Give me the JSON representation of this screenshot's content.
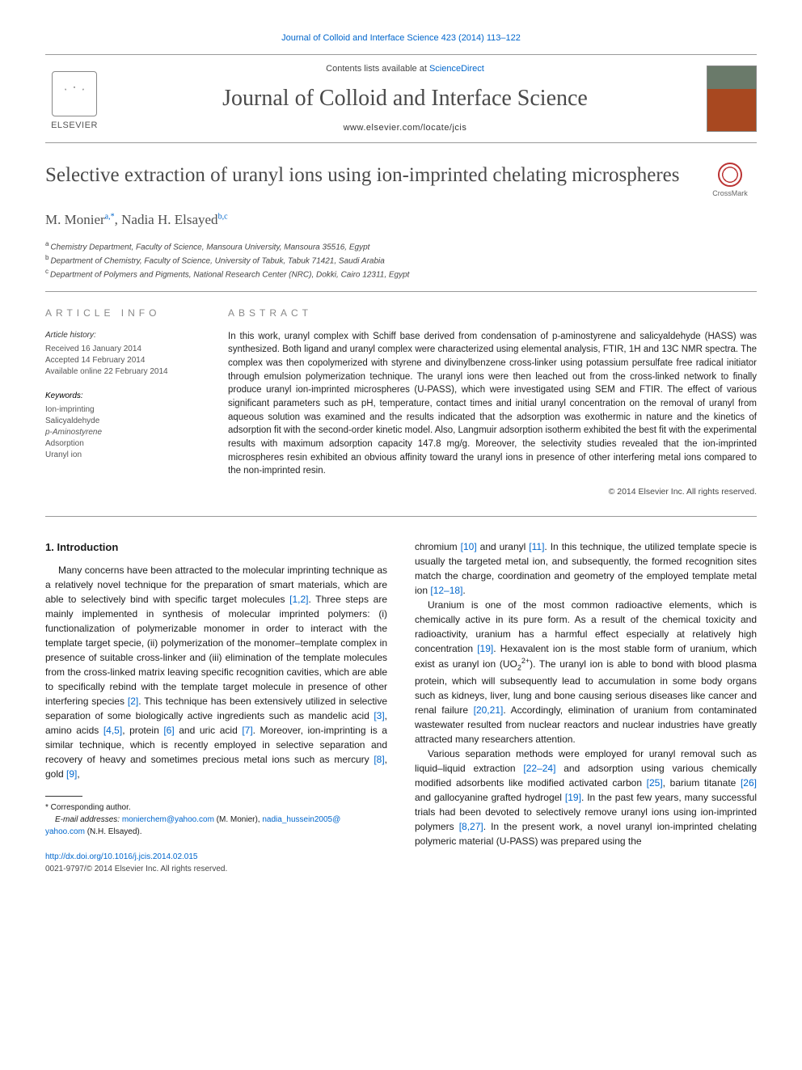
{
  "top_citation": {
    "journal_link_text": "Journal of Colloid and Interface Science 423 (2014) 113–122",
    "journal_link_color": "#0066cc"
  },
  "header": {
    "contents_prefix": "Contents lists available at ",
    "contents_link": "ScienceDirect",
    "journal_name": "Journal of Colloid and Interface Science",
    "homepage_prefix": "www.elsevier.com/locate/jcis",
    "publisher": "ELSEVIER"
  },
  "crossmark_label": "CrossMark",
  "article": {
    "title": "Selective extraction of uranyl ions using ion-imprinted chelating microspheres",
    "authors_html": "M. Monier",
    "author1": "M. Monier",
    "author1_sup": "a,",
    "author1_star": "*",
    "author_sep": ", ",
    "author2": "Nadia H. Elsayed",
    "author2_sup": "b,c",
    "affiliations": [
      {
        "marker": "a",
        "text": "Chemistry Department, Faculty of Science, Mansoura University, Mansoura 35516, Egypt"
      },
      {
        "marker": "b",
        "text": "Department of Chemistry, Faculty of Science, University of Tabuk, Tabuk 71421, Saudi Arabia"
      },
      {
        "marker": "c",
        "text": "Department of Polymers and Pigments, National Research Center (NRC), Dokki, Cairo 12311, Egypt"
      }
    ]
  },
  "info": {
    "header": "ARTICLE INFO",
    "history_label": "Article history:",
    "received": "Received 16 January 2014",
    "accepted": "Accepted 14 February 2014",
    "online": "Available online 22 February 2014",
    "keywords_label": "Keywords:",
    "keywords": [
      "Ion-imprinting",
      "Salicyaldehyde",
      "p-Aminostyrene",
      "Adsorption",
      "Uranyl ion"
    ]
  },
  "abstract": {
    "header": "ABSTRACT",
    "text": "In this work, uranyl complex with Schiff base derived from condensation of p-aminostyrene and salicyaldehyde (HASS) was synthesized. Both ligand and uranyl complex were characterized using elemental analysis, FTIR, 1H and 13C NMR spectra. The complex was then copolymerized with styrene and divinylbenzene cross-linker using potassium persulfate free radical initiator through emulsion polymerization technique. The uranyl ions were then leached out from the cross-linked network to finally produce uranyl ion-imprinted microspheres (U-PASS), which were investigated using SEM and FTIR. The effect of various significant parameters such as pH, temperature, contact times and initial uranyl concentration on the removal of uranyl from aqueous solution was examined and the results indicated that the adsorption was exothermic in nature and the kinetics of adsorption fit with the second-order kinetic model. Also, Langmuir adsorption isotherm exhibited the best fit with the experimental results with maximum adsorption capacity 147.8 mg/g. Moreover, the selectivity studies revealed that the ion-imprinted microspheres resin exhibited an obvious affinity toward the uranyl ions in presence of other interfering metal ions compared to the non-imprinted resin.",
    "copyright": "© 2014 Elsevier Inc. All rights reserved."
  },
  "body": {
    "section_number": "1.",
    "section_title": "Introduction",
    "col1_p1a": "Many concerns have been attracted to the molecular imprinting technique as a relatively novel technique for the preparation of smart materials, which are able to selectively bind with specific target molecules ",
    "ref_1_2": "[1,2]",
    "col1_p1b": ". Three steps are mainly implemented in synthesis of molecular imprinted polymers: (i) functionalization of polymerizable monomer in order to interact with the template target specie, (ii) polymerization of the monomer–template complex in presence of suitable cross-linker and (iii) elimination of the template molecules from the cross-linked matrix leaving specific recognition cavities, which are able to specifically rebind with the template target molecule in presence of other interfering species ",
    "ref_2": "[2]",
    "col1_p1c": ". This technique has been extensively utilized in selective separation of some biologically active ingredients such as mandelic acid ",
    "ref_3": "[3]",
    "col1_p1d": ", amino acids ",
    "ref_4_5": "[4,5]",
    "col1_p1e": ", protein ",
    "ref_6": "[6]",
    "col1_p1f": " and uric acid ",
    "ref_7": "[7]",
    "col1_p1g": ". Moreover, ion-imprinting is a similar technique, which is recently employed in selective separation and recovery of heavy and sometimes precious metal ions such as mercury ",
    "ref_8": "[8]",
    "col1_p1h": ", gold ",
    "ref_9": "[9]",
    "col1_p1i": ",",
    "col2_p1a": "chromium ",
    "ref_10": "[10]",
    "col2_p1b": " and uranyl ",
    "ref_11": "[11]",
    "col2_p1c": ". In this technique, the utilized template specie is usually the targeted metal ion, and subsequently, the formed recognition sites match the charge, coordination and geometry of the employed template metal ion ",
    "ref_12_18": "[12–18]",
    "col2_p1d": ".",
    "col2_p2a": "Uranium is one of the most common radioactive elements, which is chemically active in its pure form. As a result of the chemical toxicity and radioactivity, uranium has a harmful effect especially at relatively high concentration ",
    "ref_19": "[19]",
    "col2_p2b": ". Hexavalent ion is the most stable form of uranium, which exist as uranyl ion (UO",
    "uo2_sub": "2",
    "uo2_sup": "2+",
    "col2_p2c": "). The uranyl ion is able to bond with blood plasma protein, which will subsequently lead to accumulation in some body organs such as kidneys, liver, lung and bone causing serious diseases like cancer and renal failure ",
    "ref_20_21": "[20,21]",
    "col2_p2d": ". Accordingly, elimination of uranium from contaminated wastewater resulted from nuclear reactors and nuclear industries have greatly attracted many researchers attention.",
    "col2_p3a": "Various separation methods were employed for uranyl removal such as liquid–liquid extraction ",
    "ref_22_24": "[22–24]",
    "col2_p3b": " and adsorption using various chemically modified adsorbents like modified activated carbon ",
    "ref_25": "[25]",
    "col2_p3c": ", barium titanate ",
    "ref_26": "[26]",
    "col2_p3d": " and gallocyanine grafted hydrogel ",
    "ref_19b": "[19]",
    "col2_p3e": ". In the past few years, many successful trials had been devoted to selectively remove uranyl ions using ion-imprinted polymers ",
    "ref_8_27": "[8,27]",
    "col2_p3f": ". In the present work, a novel uranyl ion-imprinted chelating polymeric material (U-PASS) was prepared using the"
  },
  "footnote": {
    "corr_label": "* Corresponding author.",
    "email_label": "E-mail addresses:",
    "email1": "monierchem@yahoo.com",
    "email1_attr": " (M. Monier), ",
    "email2a": "nadia_hussein2005@",
    "email2b": "yahoo.com",
    "email2_attr": " (N.H. Elsayed)."
  },
  "doi": {
    "url": "http://dx.doi.org/10.1016/j.jcis.2014.02.015",
    "line2": "0021-9797/© 2014 Elsevier Inc. All rights reserved."
  },
  "colors": {
    "link": "#0066cc",
    "heading": "#4a4a4a",
    "rule": "#999999",
    "text": "#1a1a1a"
  }
}
